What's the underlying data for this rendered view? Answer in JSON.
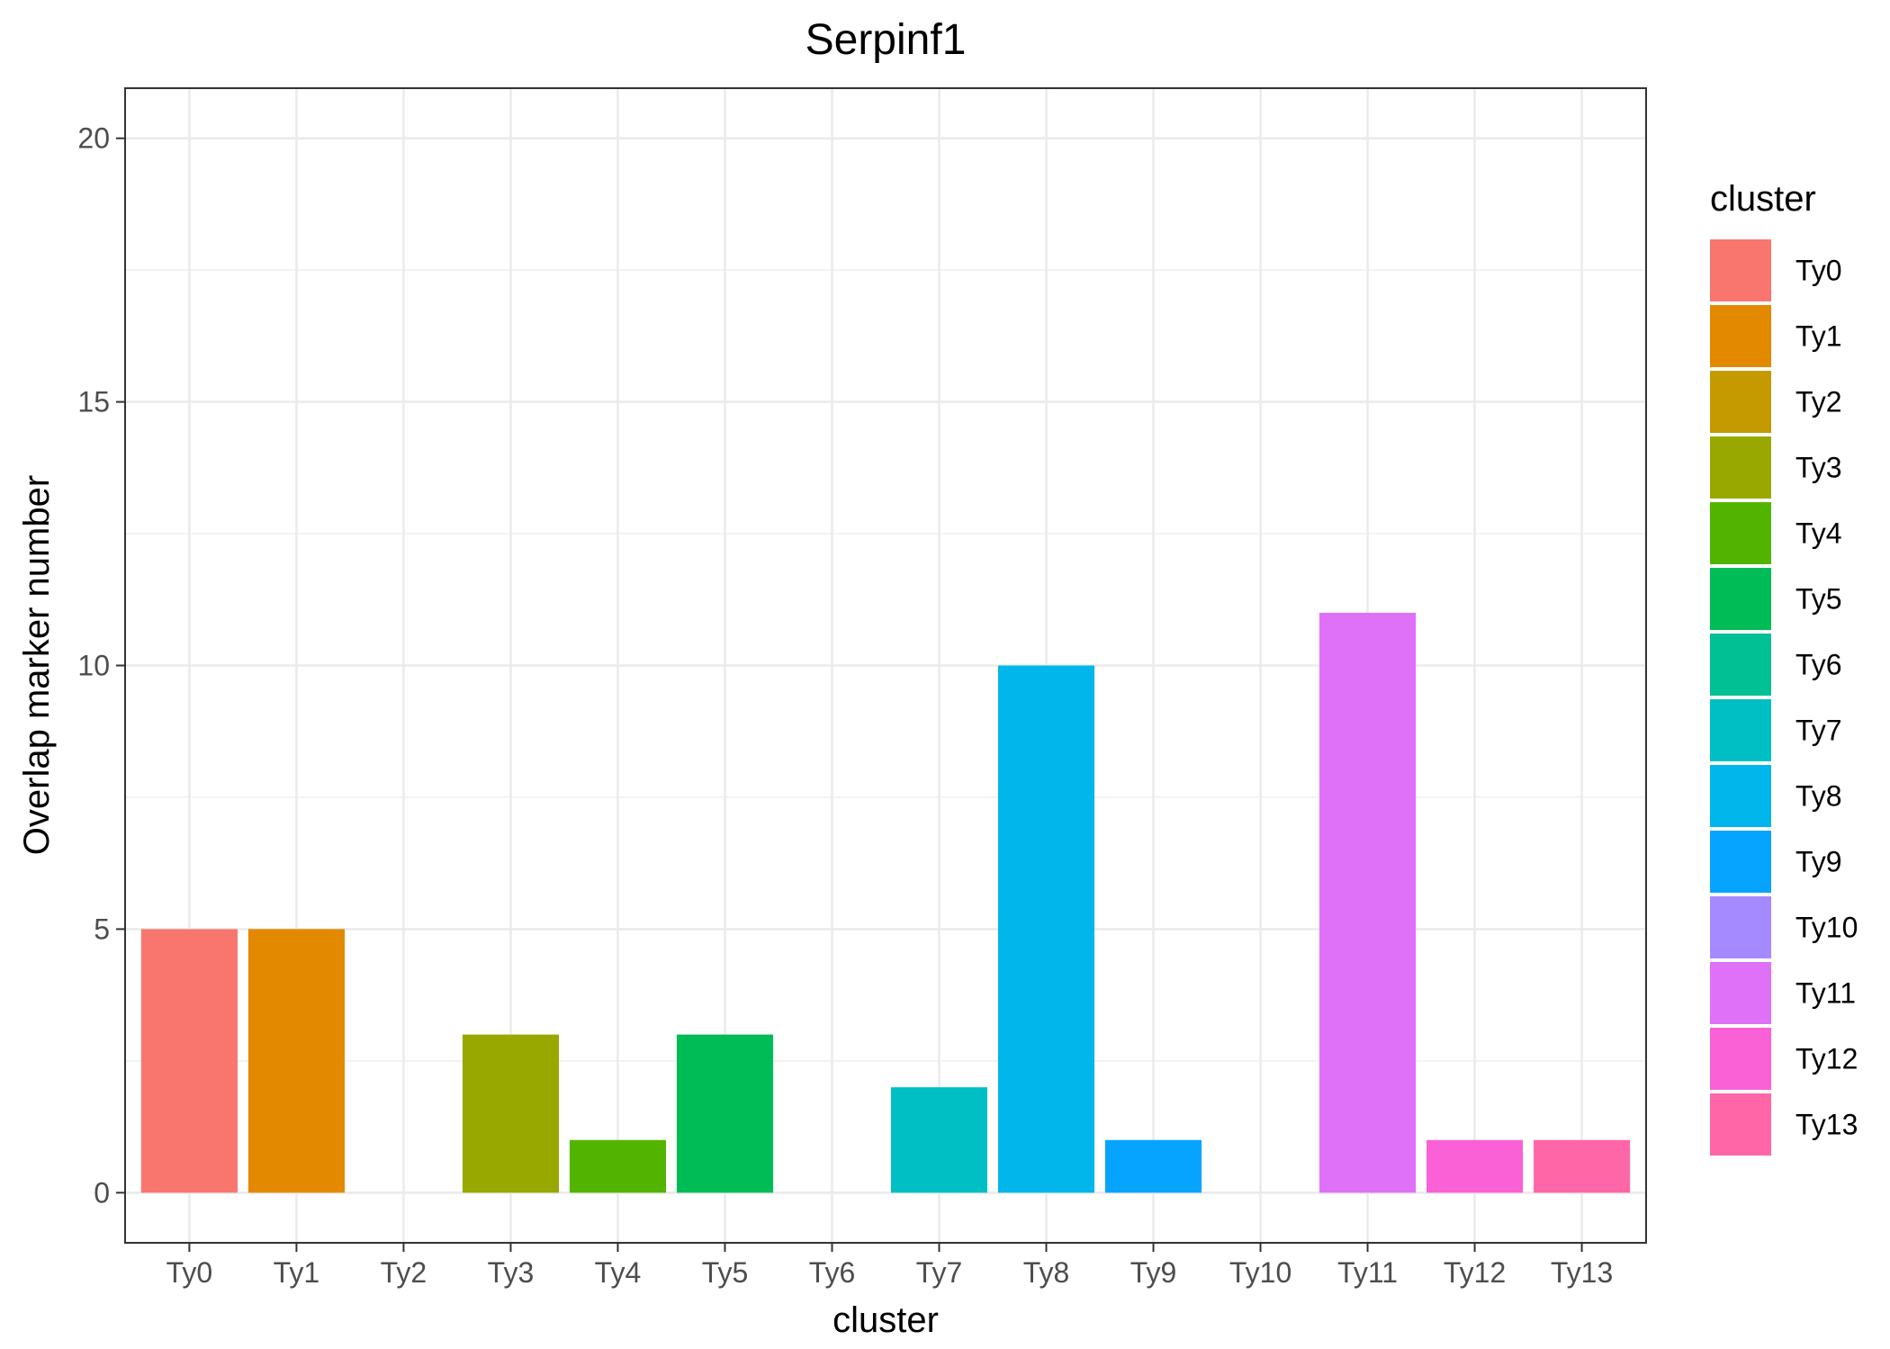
{
  "chart_data": {
    "type": "bar",
    "title": "Serpinf1",
    "xlabel": "cluster",
    "ylabel": "Overlap marker number",
    "categories": [
      "Ty0",
      "Ty1",
      "Ty2",
      "Ty3",
      "Ty4",
      "Ty5",
      "Ty6",
      "Ty7",
      "Ty8",
      "Ty9",
      "Ty10",
      "Ty11",
      "Ty12",
      "Ty13"
    ],
    "values": [
      5,
      5,
      0,
      3,
      1,
      3,
      0,
      2,
      10,
      1,
      0,
      11,
      1,
      1
    ],
    "colors": [
      "#F8766D",
      "#E38900",
      "#C49A00",
      "#99A800",
      "#53B400",
      "#00BC56",
      "#00C094",
      "#00BFC4",
      "#00B6EB",
      "#06A4FF",
      "#A58AFF",
      "#DF70F8",
      "#FB61D7",
      "#FF66A8"
    ],
    "ylim": [
      -0.95,
      20.95
    ],
    "yticks": [
      0,
      5,
      10,
      15,
      20
    ],
    "grid": true,
    "legend": {
      "title": "cluster",
      "placement": "right",
      "items": [
        "Ty0",
        "Ty1",
        "Ty2",
        "Ty3",
        "Ty4",
        "Ty5",
        "Ty6",
        "Ty7",
        "Ty8",
        "Ty9",
        "Ty10",
        "Ty11",
        "Ty12",
        "Ty13"
      ]
    }
  }
}
